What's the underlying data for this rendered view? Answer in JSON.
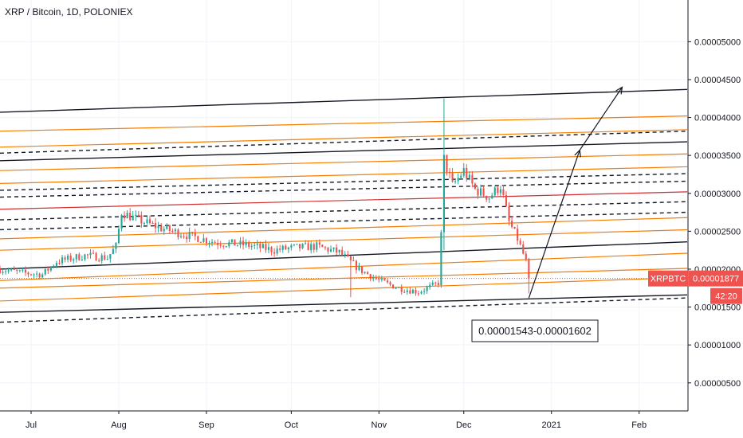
{
  "header": {
    "title": "XRP / Bitcoin, 1D, POLONIEX"
  },
  "badges": {
    "symbol": "XRPBTC",
    "price": "0.00001877",
    "countdown": "42:20"
  },
  "annotation": {
    "range_text": "0.00001543-0.00001602"
  },
  "colors": {
    "up": "#26a69a",
    "down": "#ef5350",
    "orange": "#f57c00",
    "black": "#131722",
    "red_line": "#d32f2f",
    "badge": "#ef5350",
    "countdown_badge": "#ef5350"
  },
  "chart_data": {
    "type": "candlestick",
    "title": "XRP / Bitcoin, 1D, POLONIEX",
    "y_ticks": [
      "0.00000500",
      "0.00001000",
      "0.00001500",
      "0.00002000",
      "0.00002500",
      "0.00003000",
      "0.00003500",
      "0.00004000",
      "0.00004500",
      "0.00005000"
    ],
    "y_tick_values": [
      5e-06,
      1e-05,
      1.5e-05,
      2e-05,
      2.5e-05,
      3e-05,
      3.5e-05,
      4e-05,
      4.5e-05,
      5e-05
    ],
    "x_ticks": [
      "Jul",
      "Aug",
      "Sep",
      "Oct",
      "Nov",
      "Dec",
      "2021",
      "Feb"
    ],
    "x_tick_dates": [
      "2020-07-01",
      "2020-08-01",
      "2020-09-01",
      "2020-10-01",
      "2020-11-01",
      "2020-12-01",
      "2021-01-01",
      "2021-02-01"
    ],
    "x_range": [
      "2020-06-20",
      "2021-02-18"
    ],
    "y_range": [
      1.3e-06,
      5.55e-05
    ],
    "last_price": 1.877e-05,
    "price_path": [
      [
        "2020-06-20",
        2e-05
      ],
      [
        "2020-06-28",
        1.95e-05
      ],
      [
        "2020-07-05",
        1.93e-05
      ],
      [
        "2020-07-10",
        2.1e-05
      ],
      [
        "2020-07-20",
        2.18e-05
      ],
      [
        "2020-07-28",
        2.15e-05
      ],
      [
        "2020-07-31",
        2.3e-05
      ],
      [
        "2020-08-02",
        2.75e-05
      ],
      [
        "2020-08-06",
        2.68e-05
      ],
      [
        "2020-08-15",
        2.55e-05
      ],
      [
        "2020-08-25",
        2.45e-05
      ],
      [
        "2020-09-05",
        2.35e-05
      ],
      [
        "2020-09-15",
        2.32e-05
      ],
      [
        "2020-09-25",
        2.25e-05
      ],
      [
        "2020-10-01",
        2.28e-05
      ],
      [
        "2020-10-10",
        2.3e-05
      ],
      [
        "2020-10-18",
        2.22e-05
      ],
      [
        "2020-10-25",
        2e-05
      ],
      [
        "2020-11-01",
        1.85e-05
      ],
      [
        "2020-11-08",
        1.75e-05
      ],
      [
        "2020-11-15",
        1.7e-05
      ],
      [
        "2020-11-20",
        1.78e-05
      ],
      [
        "2020-11-22",
        1.82e-05
      ],
      [
        "2020-11-23",
        2.45e-05
      ],
      [
        "2020-11-24",
        3.45e-05
      ],
      [
        "2020-11-27",
        3.1e-05
      ],
      [
        "2020-12-01",
        3.3e-05
      ],
      [
        "2020-12-05",
        3.05e-05
      ],
      [
        "2020-12-10",
        2.95e-05
      ],
      [
        "2020-12-14",
        3.1e-05
      ],
      [
        "2020-12-17",
        2.62e-05
      ],
      [
        "2020-12-20",
        2.4e-05
      ],
      [
        "2020-12-23",
        2.1e-05
      ],
      [
        "2020-12-24",
        1.88e-05
      ]
    ],
    "wicks": [
      [
        "2020-10-22",
        1.63e-05,
        2.05e-05
      ],
      [
        "2020-11-24",
        2.25e-05,
        4.25e-05
      ],
      [
        "2020-12-24",
        1.68e-05,
        1.95e-05
      ]
    ],
    "trend_lines": [
      {
        "color": "black",
        "style": "solid",
        "start": [
          "2020-06-20",
          4.07e-05
        ],
        "end": [
          "2021-02-18",
          4.37e-05
        ]
      },
      {
        "color": "orange",
        "style": "solid",
        "start": [
          "2020-06-20",
          3.82e-05
        ],
        "end": [
          "2021-02-18",
          4.02e-05
        ]
      },
      {
        "color": "orange",
        "style": "solid",
        "start": [
          "2020-06-20",
          3.61e-05
        ],
        "end": [
          "2021-02-18",
          3.84e-05
        ]
      },
      {
        "color": "black",
        "style": "dashed",
        "start": [
          "2020-06-20",
          3.53e-05
        ],
        "end": [
          "2021-02-18",
          3.82e-05
        ]
      },
      {
        "color": "black",
        "style": "solid",
        "start": [
          "2020-06-20",
          3.43e-05
        ],
        "end": [
          "2021-02-18",
          3.68e-05
        ]
      },
      {
        "color": "orange",
        "style": "solid",
        "start": [
          "2020-06-20",
          3.3e-05
        ],
        "end": [
          "2021-02-18",
          3.52e-05
        ]
      },
      {
        "color": "orange",
        "style": "solid",
        "start": [
          "2020-06-20",
          3.13e-05
        ],
        "end": [
          "2021-02-18",
          3.35e-05
        ]
      },
      {
        "color": "black",
        "style": "dashed",
        "start": [
          "2020-06-20",
          3.04e-05
        ],
        "end": [
          "2021-02-18",
          3.26e-05
        ]
      },
      {
        "color": "black",
        "style": "dashed",
        "start": [
          "2020-06-20",
          2.95e-05
        ],
        "end": [
          "2021-02-18",
          3.16e-05
        ]
      },
      {
        "color": "red_line",
        "style": "solid",
        "start": [
          "2020-06-20",
          2.79e-05
        ],
        "end": [
          "2021-02-18",
          3.02e-05
        ]
      },
      {
        "color": "black",
        "style": "dashed",
        "start": [
          "2020-06-20",
          2.65e-05
        ],
        "end": [
          "2021-02-18",
          2.89e-05
        ]
      },
      {
        "color": "black",
        "style": "dashed",
        "start": [
          "2020-06-20",
          2.52e-05
        ],
        "end": [
          "2021-02-18",
          2.75e-05
        ]
      },
      {
        "color": "orange",
        "style": "solid",
        "start": [
          "2020-06-20",
          2.4e-05
        ],
        "end": [
          "2021-02-18",
          2.68e-05
        ]
      },
      {
        "color": "orange",
        "style": "solid",
        "start": [
          "2020-06-20",
          2.25e-05
        ],
        "end": [
          "2021-02-18",
          2.52e-05
        ]
      },
      {
        "color": "black",
        "style": "solid",
        "start": [
          "2020-06-20",
          2e-05
        ],
        "end": [
          "2021-02-18",
          2.36e-05
        ]
      },
      {
        "color": "orange",
        "style": "solid",
        "start": [
          "2020-06-20",
          1.85e-05
        ],
        "end": [
          "2021-02-18",
          2.21e-05
        ]
      },
      {
        "color": "orange",
        "style": "solid",
        "start": [
          "2020-06-20",
          1.75e-05
        ],
        "end": [
          "2021-02-18",
          2.01e-05
        ]
      },
      {
        "color": "orange",
        "style": "solid",
        "start": [
          "2020-06-20",
          1.58e-05
        ],
        "end": [
          "2021-02-18",
          1.89e-05
        ]
      },
      {
        "color": "black",
        "style": "solid",
        "start": [
          "2020-06-20",
          1.43e-05
        ],
        "end": [
          "2021-02-18",
          1.66e-05
        ]
      },
      {
        "color": "black",
        "style": "dashed",
        "start": [
          "2020-06-20",
          1.3e-05
        ],
        "end": [
          "2021-02-18",
          1.62e-05
        ]
      }
    ],
    "projection_arrow": [
      [
        "2020-12-24",
        1.62e-05
      ],
      [
        "2021-01-11",
        3.57e-05
      ],
      [
        "2021-01-26",
        4.4e-05
      ]
    ],
    "grid": true,
    "axis_position": "right"
  }
}
